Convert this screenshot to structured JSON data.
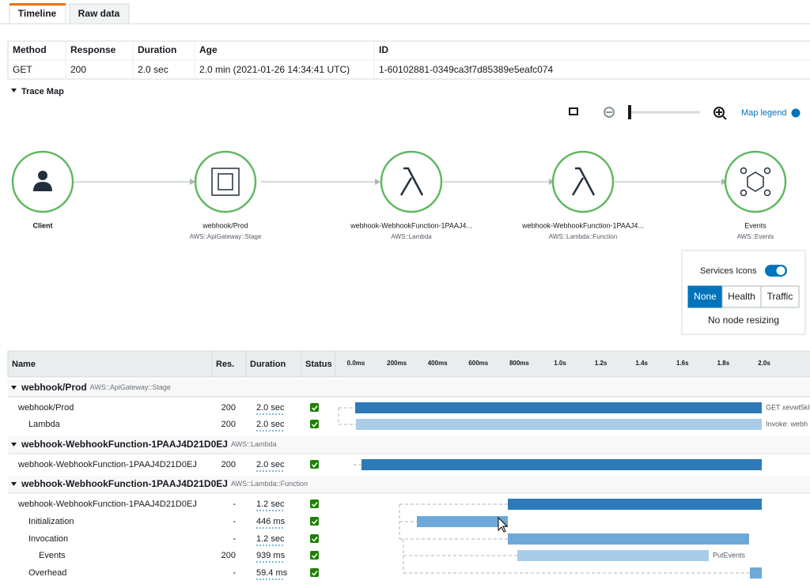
{
  "tabs": [
    "Timeline",
    "Raw data"
  ],
  "summary": {
    "headers": [
      "Method",
      "Response",
      "Duration",
      "Age",
      "ID"
    ],
    "values": [
      "GET",
      "200",
      "2.0 sec",
      "2.0 min (2021-01-26 14:34:41 UTC)",
      "1-60102881-0349ca3f7d85389e5eafc074"
    ]
  },
  "trace_map": {
    "title": "Trace Map",
    "legend_link": "Map legend",
    "nodes": [
      {
        "label": "Client"
      },
      {
        "label": "webhook/Prod",
        "type": "AWS::ApiGateway::Stage"
      },
      {
        "label": "webhook-WebhookFunction-1PAAJ4...",
        "type": "AWS::Lambda"
      },
      {
        "label": "webhook-WebhookFunction-1PAAJ4...",
        "type": "AWS::Lambda::Function"
      },
      {
        "label": "Events",
        "type": "AWS::Events"
      }
    ]
  },
  "legend_panel": {
    "toggle_label": "Services Icons",
    "options": [
      "None",
      "Health",
      "Traffic"
    ],
    "note": "No node resizing"
  },
  "timeline": {
    "headers": [
      "Name",
      "Res.",
      "Duration",
      "Status"
    ],
    "ticks": [
      "0.0ms",
      "200ms",
      "400ms",
      "600ms",
      "800ms",
      "1.0s",
      "1.2s",
      "1.4s",
      "1.6s",
      "1.8s",
      "2.0s"
    ],
    "groups": [
      {
        "name": "webhook/Prod",
        "type": "AWS::ApiGateway::Stage",
        "rows": [
          {
            "name": "webhook/Prod",
            "res": "200",
            "duration": "2.0 sec",
            "label": "GET xevwt5kl"
          },
          {
            "name": "Lambda",
            "res": "200",
            "duration": "2.0 sec",
            "label": "Invoke: webh"
          }
        ]
      },
      {
        "name": "webhook-WebhookFunction-1PAAJ4D21D0EJ",
        "type": "AWS::Lambda",
        "rows": [
          {
            "name": "webhook-WebhookFunction-1PAAJ4D21D0EJ",
            "res": "200",
            "duration": "2.0 sec"
          }
        ]
      },
      {
        "name": "webhook-WebhookFunction-1PAAJ4D21D0EJ",
        "type": "AWS::Lambda::Function",
        "rows": [
          {
            "name": "webhook-WebhookFunction-1PAAJ4D21D0EJ",
            "res": "-",
            "duration": "1.2 sec"
          },
          {
            "name": "Initialization",
            "res": "-",
            "duration": "446 ms"
          },
          {
            "name": "Invocation",
            "res": "-",
            "duration": "1.2 sec"
          },
          {
            "name": "Events",
            "res": "200",
            "duration": "939 ms",
            "label": "PutEvents"
          },
          {
            "name": "Overhead",
            "res": "-",
            "duration": "59.4 ms"
          }
        ]
      }
    ]
  }
}
